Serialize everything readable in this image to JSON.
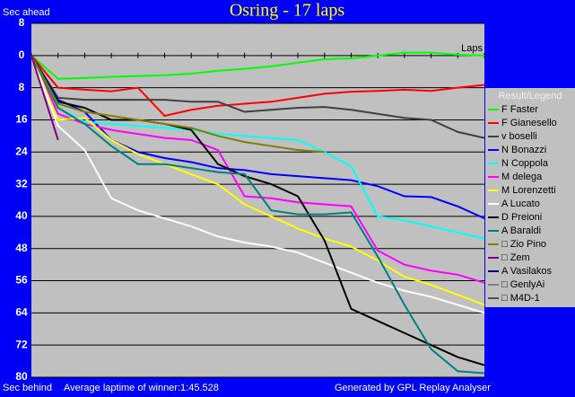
{
  "chart_data": {
    "type": "line",
    "title": "Osring - 17 laps",
    "y_label_top": "Sec ahead",
    "y_label_bottom": "Sec behind",
    "x_label": "Laps",
    "legend_title": "Result/Legend",
    "footer_left": "Average laptime of winner:1:45.528",
    "footer_right": "Generated by GPL Replay Analyser",
    "legend": "right",
    "grid": true,
    "y_inverted": true,
    "x": [
      0,
      1,
      2,
      3,
      4,
      5,
      6,
      7,
      8,
      9,
      10,
      11,
      12,
      13,
      14,
      15,
      16,
      17
    ],
    "xlim": [
      0,
      17
    ],
    "ylim": [
      -8,
      80
    ],
    "yticks": [
      {
        "value": -8,
        "label": "8"
      },
      0,
      8,
      16,
      24,
      32,
      40,
      48,
      56,
      64,
      72,
      80
    ],
    "series": [
      {
        "name": "F Faster",
        "color": "#00ff00",
        "values": [
          0,
          5.8,
          5.6,
          5.3,
          5.1,
          4.9,
          4.5,
          3.8,
          3.3,
          2.7,
          1.8,
          0.9,
          0.7,
          0,
          -0.7,
          -0.7,
          -0.2,
          0
        ]
      },
      {
        "name": "F Gianesello",
        "color": "#ff0000",
        "values": [
          0,
          8,
          8.5,
          8.9,
          8,
          15,
          13.5,
          12.5,
          12,
          11.5,
          10.5,
          9.5,
          9,
          8.8,
          8.5,
          8.8,
          8,
          7.3
        ]
      },
      {
        "name": "v boselli",
        "color": "#404040",
        "values": [
          0,
          10.5,
          11,
          11,
          11,
          11,
          11.5,
          11.5,
          14,
          13.5,
          13,
          12.8,
          13.5,
          14.5,
          15.5,
          16,
          19,
          20.5
        ]
      },
      {
        "name": "N Bonazzi",
        "color": "#0000ff",
        "values": [
          0,
          11,
          14,
          21,
          24,
          25.5,
          26.5,
          28,
          28.5,
          29.5,
          30,
          30.5,
          31,
          32.5,
          35,
          35.2,
          37.5,
          40.5
        ]
      },
      {
        "name": "N Coppola",
        "color": "#00ffff",
        "values": [
          0,
          13,
          16.5,
          17,
          17.5,
          18,
          18.5,
          19.5,
          20,
          20.5,
          21,
          24,
          27.5,
          40,
          41,
          42.5,
          44,
          45.5
        ]
      },
      {
        "name": "M delega",
        "color": "#ff00ff",
        "values": [
          0,
          14.5,
          17,
          18.5,
          19.5,
          20.5,
          21,
          23.5,
          35,
          35.5,
          36.5,
          37,
          37.5,
          48.5,
          52,
          53.5,
          54.5,
          56.5
        ]
      },
      {
        "name": "M Lorenzetti",
        "color": "#ffff00",
        "values": [
          0,
          16,
          15.5,
          21,
          24.5,
          27,
          29.5,
          32,
          37,
          40,
          43,
          45.5,
          47.5,
          51,
          55,
          57,
          59.5,
          62
        ]
      },
      {
        "name": "A Lucato",
        "color": "#ffffff",
        "values": [
          0,
          17.5,
          23.5,
          35.5,
          38.5,
          40.5,
          42.5,
          45,
          46.5,
          47.5,
          49,
          51.5,
          54,
          56.5,
          58.5,
          60,
          62,
          64
        ]
      },
      {
        "name": "D Preioni",
        "color": "#000000",
        "values": [
          0,
          11.5,
          13,
          16,
          16,
          17,
          18.5,
          27,
          30,
          32,
          35,
          46,
          63,
          66,
          69,
          72,
          75,
          77
        ]
      },
      {
        "name": "A Baraldi",
        "color": "#008080",
        "values": [
          0,
          13,
          17,
          22.5,
          27,
          27,
          28,
          29,
          29.5,
          38.5,
          39.5,
          39.5,
          39,
          50,
          62,
          73,
          78.5,
          79
        ]
      },
      {
        "name": "□ Zio Pino",
        "color": "#808000",
        "values": [
          0,
          12,
          14,
          15,
          16,
          17,
          18,
          20,
          21.5,
          22.5,
          23.5,
          24,
          null,
          null,
          null,
          null,
          null,
          null
        ]
      },
      {
        "name": "□ Zem",
        "color": "#800080",
        "values": [
          0,
          21,
          null,
          null,
          null,
          null,
          null,
          null,
          null,
          null,
          null,
          null,
          null,
          null,
          null,
          null,
          null,
          null
        ]
      },
      {
        "name": "A Vasilakos",
        "color": "#000080",
        "values": [
          null,
          null,
          null,
          null,
          null,
          null,
          null,
          null,
          null,
          null,
          null,
          null,
          null,
          null,
          null,
          null,
          null,
          null
        ]
      },
      {
        "name": "□ GenlyAi",
        "color": "#808080",
        "values": [
          null,
          null,
          null,
          null,
          null,
          null,
          null,
          null,
          null,
          null,
          null,
          null,
          null,
          null,
          null,
          null,
          null,
          null
        ]
      },
      {
        "name": "□ M4D-1",
        "color": "#505050",
        "values": [
          null,
          null,
          null,
          null,
          null,
          null,
          null,
          null,
          null,
          null,
          null,
          null,
          null,
          null,
          null,
          null,
          null,
          null
        ]
      }
    ]
  }
}
